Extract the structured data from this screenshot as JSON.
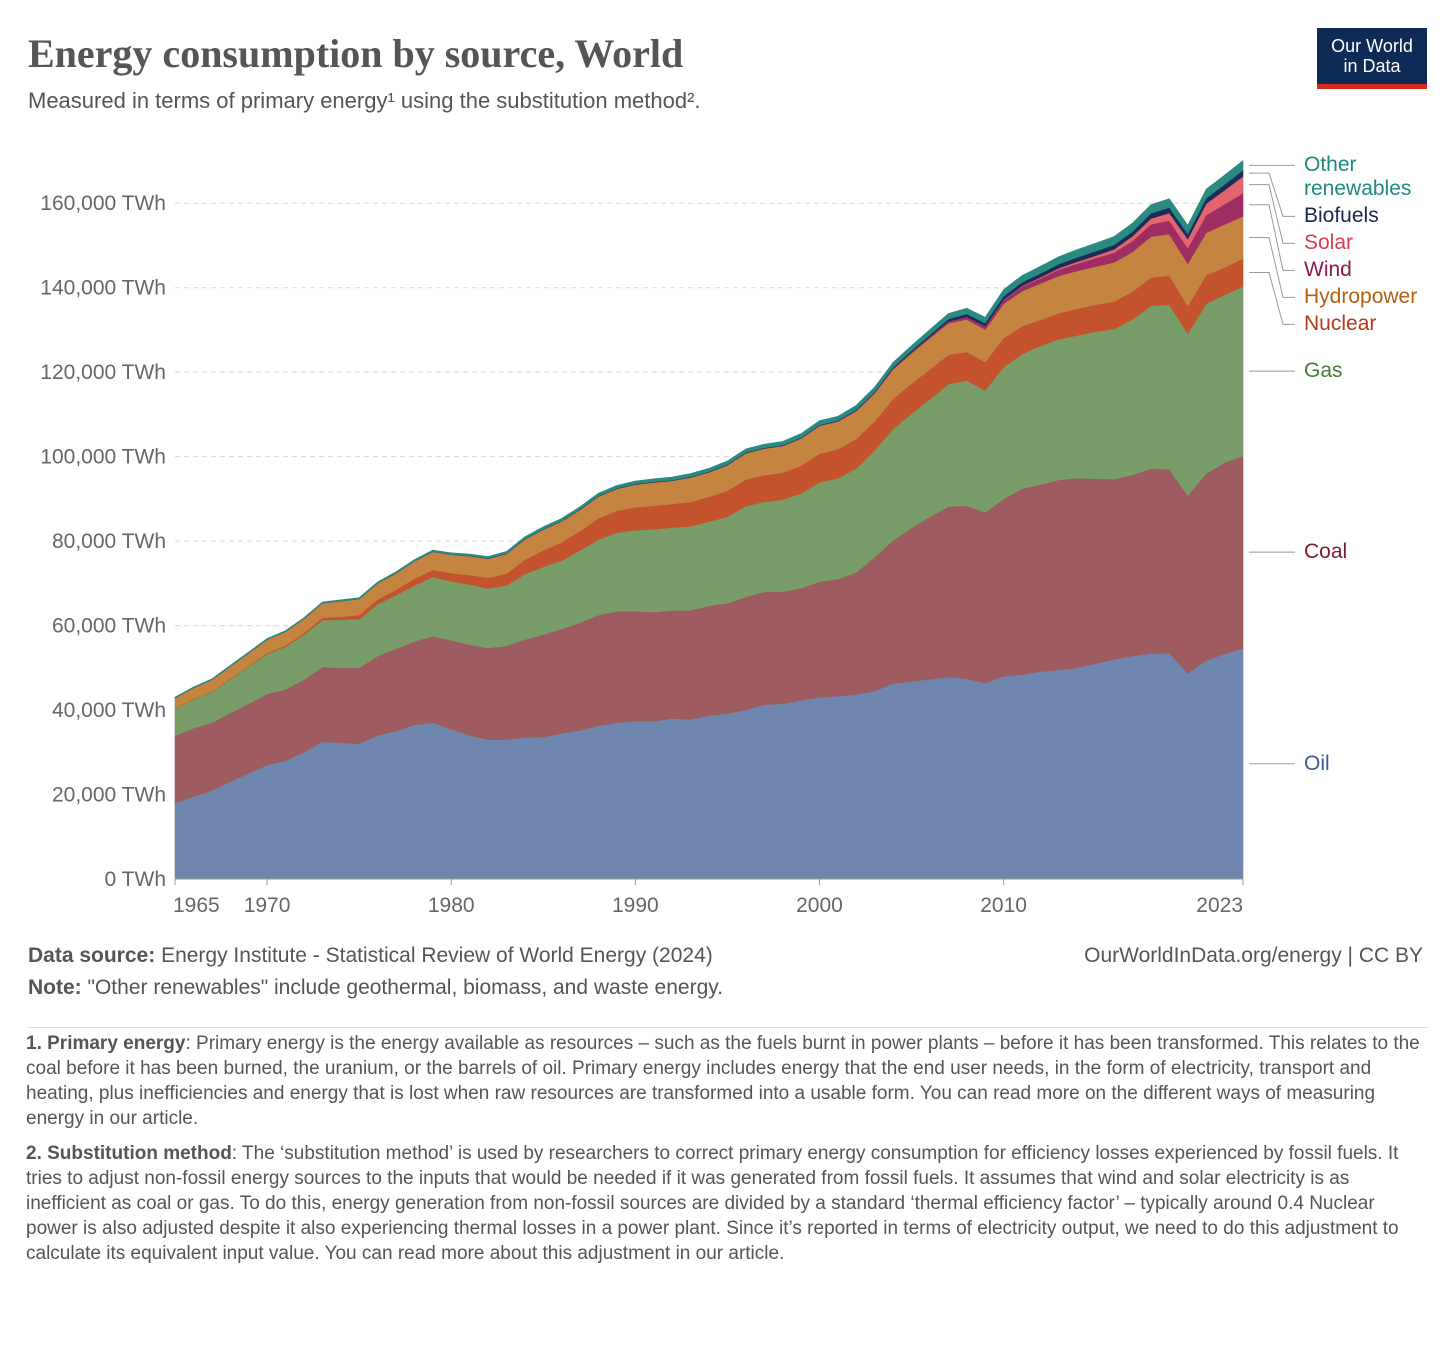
{
  "chart_data": {
    "type": "stacked_area",
    "title": "Energy consumption by source, World",
    "subtitle": "Measured in terms of primary energy¹ using the substitution method².",
    "logo": [
      "Our World",
      "in Data"
    ],
    "x": [
      1965,
      1966,
      1967,
      1968,
      1969,
      1970,
      1971,
      1972,
      1973,
      1974,
      1975,
      1976,
      1977,
      1978,
      1979,
      1980,
      1981,
      1982,
      1983,
      1984,
      1985,
      1986,
      1987,
      1988,
      1989,
      1990,
      1991,
      1992,
      1993,
      1994,
      1995,
      1996,
      1997,
      1998,
      1999,
      2000,
      2001,
      2002,
      2003,
      2004,
      2005,
      2006,
      2007,
      2008,
      2009,
      2010,
      2011,
      2012,
      2013,
      2014,
      2015,
      2016,
      2017,
      2018,
      2019,
      2020,
      2021,
      2022,
      2023
    ],
    "xlim": [
      1965,
      2023
    ],
    "xticks": [
      1965,
      1970,
      1980,
      1990,
      2000,
      2010,
      2023
    ],
    "ylim": [
      0,
      170000
    ],
    "yticks": [
      {
        "value": 0,
        "label": "0 TWh"
      },
      {
        "value": 20000,
        "label": "20,000 TWh"
      },
      {
        "value": 40000,
        "label": "40,000 TWh"
      },
      {
        "value": 60000,
        "label": "60,000 TWh"
      },
      {
        "value": 80000,
        "label": "80,000 TWh"
      },
      {
        "value": 100000,
        "label": "100,000 TWh"
      },
      {
        "value": 120000,
        "label": "120,000 TWh"
      },
      {
        "value": 140000,
        "label": "140,000 TWh"
      },
      {
        "value": 160000,
        "label": "160,000 TWh"
      }
    ],
    "grid": true,
    "series": [
      {
        "name": "Oil",
        "color": "#6f86ae",
        "label_color": "#3d5a96",
        "values": [
          18000,
          19500,
          21000,
          23000,
          25000,
          27000,
          28000,
          30000,
          32500,
          32300,
          32000,
          34000,
          35000,
          36500,
          37000,
          35500,
          34000,
          33000,
          33000,
          33500,
          33600,
          34500,
          35200,
          36300,
          37000,
          37400,
          37400,
          38000,
          37800,
          38700,
          39200,
          40000,
          41300,
          41500,
          42300,
          43000,
          43300,
          43700,
          44500,
          46300,
          46800,
          47300,
          47800,
          47400,
          46400,
          48000,
          48400,
          49100,
          49500,
          50000,
          51000,
          52000,
          52800,
          53400,
          53500,
          48700,
          51700,
          53300,
          54600
        ]
      },
      {
        "name": "Coal",
        "color": "#9e5b5f",
        "label_color": "#7a1f2a",
        "values": [
          16000,
          16200,
          16000,
          16300,
          16500,
          16800,
          16900,
          17200,
          17700,
          17700,
          18000,
          18800,
          19500,
          19800,
          20500,
          21000,
          21500,
          21700,
          22200,
          23200,
          24300,
          24700,
          25500,
          26200,
          26400,
          26000,
          25800,
          25600,
          25800,
          26000,
          26100,
          26800,
          26700,
          26500,
          26600,
          27400,
          27700,
          28900,
          31700,
          33900,
          36300,
          38500,
          40400,
          41000,
          40400,
          42000,
          44000,
          44300,
          45000,
          44900,
          43800,
          42700,
          42900,
          43800,
          43500,
          42100,
          44300,
          45300,
          45600
        ]
      },
      {
        "name": "Gas",
        "color": "#789d68",
        "label_color": "#4a7a3a",
        "values": [
          6300,
          6800,
          7300,
          8000,
          8800,
          9500,
          10100,
          10600,
          11100,
          11400,
          11500,
          12300,
          12700,
          13200,
          14000,
          14000,
          14200,
          14100,
          14300,
          15500,
          16000,
          16200,
          17100,
          17900,
          18600,
          19200,
          19600,
          19600,
          19900,
          19900,
          20500,
          21500,
          21300,
          21800,
          22400,
          23500,
          23900,
          24600,
          25300,
          26400,
          27100,
          27800,
          29000,
          29600,
          28900,
          31200,
          31900,
          32800,
          33300,
          33800,
          34800,
          35500,
          36800,
          38500,
          39000,
          38300,
          40200,
          39700,
          40100
        ]
      },
      {
        "name": "Nuclear",
        "color": "#c4522e",
        "label_color": "#b5391d",
        "values": [
          70,
          100,
          120,
          150,
          170,
          230,
          300,
          400,
          550,
          700,
          1000,
          1100,
          1300,
          1600,
          1700,
          1900,
          2300,
          2500,
          2800,
          3400,
          3900,
          4300,
          4600,
          5000,
          5200,
          5400,
          5600,
          5600,
          5800,
          5900,
          6100,
          6300,
          6300,
          6400,
          6600,
          6800,
          6900,
          7000,
          6900,
          7100,
          7100,
          7100,
          6900,
          6800,
          6700,
          6900,
          6600,
          6200,
          6200,
          6300,
          6400,
          6500,
          6600,
          6700,
          6900,
          6600,
          6800,
          6500,
          6600
        ]
      },
      {
        "name": "Hydropower",
        "color": "#c5843f",
        "label_color": "#b35f12",
        "values": [
          2500,
          2650,
          2750,
          2900,
          3050,
          3150,
          3250,
          3400,
          3450,
          3700,
          3800,
          3800,
          3900,
          4150,
          4300,
          4400,
          4450,
          4550,
          4700,
          4850,
          4950,
          5000,
          5050,
          5200,
          5200,
          5400,
          5500,
          5500,
          5800,
          5800,
          6100,
          6200,
          6300,
          6300,
          6400,
          6600,
          6500,
          6600,
          6600,
          7000,
          7200,
          7400,
          7500,
          7700,
          7700,
          8100,
          8300,
          8600,
          8800,
          9000,
          9000,
          9300,
          9400,
          9700,
          9800,
          10000,
          10000,
          10200,
          10000
        ]
      },
      {
        "name": "Wind",
        "color": "#a02c64",
        "label_color": "#8a1a4a",
        "values": [
          0,
          0,
          0,
          0,
          0,
          0,
          0,
          0,
          0,
          0,
          0,
          0,
          0,
          0,
          0,
          0,
          0,
          0,
          0,
          0,
          5,
          5,
          8,
          10,
          10,
          10,
          12,
          13,
          15,
          20,
          22,
          28,
          35,
          45,
          60,
          80,
          100,
          130,
          160,
          210,
          260,
          330,
          420,
          540,
          680,
          850,
          1050,
          1250,
          1500,
          1700,
          2000,
          2300,
          2600,
          2900,
          3200,
          3650,
          4200,
          4800,
          5500
        ]
      },
      {
        "name": "Solar",
        "color": "#e2646f",
        "label_color": "#d73c50",
        "values": [
          0,
          0,
          0,
          0,
          0,
          0,
          0,
          0,
          0,
          0,
          0,
          0,
          0,
          0,
          0,
          0,
          0,
          0,
          0,
          0,
          0,
          0,
          0,
          0,
          0,
          1,
          1,
          1,
          1,
          1,
          1,
          1,
          2,
          2,
          2,
          3,
          4,
          5,
          6,
          8,
          10,
          15,
          20,
          35,
          55,
          90,
          170,
          250,
          350,
          470,
          600,
          800,
          1100,
          1400,
          1800,
          2200,
          2700,
          3300,
          4000
        ]
      },
      {
        "name": "Biofuels",
        "color": "#1c2b58",
        "label_color": "#1a2550",
        "values": [
          0,
          0,
          0,
          0,
          0,
          0,
          0,
          0,
          0,
          0,
          10,
          10,
          10,
          10,
          10,
          40,
          50,
          60,
          70,
          80,
          90,
          100,
          110,
          110,
          110,
          120,
          120,
          120,
          120,
          130,
          140,
          140,
          150,
          150,
          150,
          150,
          160,
          190,
          230,
          270,
          320,
          420,
          560,
          720,
          780,
          870,
          880,
          890,
          960,
          1030,
          1050,
          1080,
          1110,
          1230,
          1270,
          1170,
          1270,
          1370,
          1450
        ]
      },
      {
        "name": "Other renewables",
        "color": "#2a8a82",
        "label_color": "#1f8a80",
        "values": [
          200,
          210,
          220,
          230,
          240,
          250,
          260,
          270,
          290,
          300,
          310,
          320,
          340,
          360,
          380,
          400,
          430,
          450,
          480,
          510,
          540,
          570,
          600,
          630,
          660,
          690,
          710,
          730,
          760,
          790,
          820,
          850,
          870,
          900,
          950,
          980,
          1000,
          1050,
          1100,
          1150,
          1200,
          1250,
          1300,
          1350,
          1400,
          1550,
          1600,
          1700,
          1750,
          1850,
          1900,
          1950,
          2000,
          2050,
          2100,
          2100,
          2150,
          2200,
          2250
        ]
      }
    ],
    "source_label": "Data source:",
    "source": "Energy Institute - Statistical Review of World Energy (2024)",
    "site": "OurWorldInData.org/energy | CC BY",
    "note_label": "Note:",
    "note": "\"Other renewables\" include geothermal, biomass, and waste energy.",
    "footnotes": [
      {
        "label": "1. Primary energy",
        "text": ": Primary energy is the energy available as resources – such as the fuels burnt in power plants – before it has been transformed. This relates to the coal before it has been burned, the uranium, or the barrels of oil. Primary energy includes energy that the end user needs, in the form of electricity, transport and heating, plus inefficiencies and energy that is lost when raw resources are transformed into a usable form. You can read more on the different ways of measuring energy in our article."
      },
      {
        "label": "2. Substitution method",
        "text": ": The ‘substitution method’ is used by researchers to correct primary energy consumption for efficiency losses experienced by fossil fuels. It tries to adjust non-fossil energy sources to the inputs that would be needed if it was generated from fossil fuels. It assumes that wind and solar electricity is as inefficient as coal or gas. To do this, energy generation from non-fossil sources are divided by a standard ‘thermal efficiency factor’ – typically around 0.4 Nuclear power is also adjusted despite it also experiencing thermal losses in a power plant. Since it’s reported in terms of electricity output, we need to do this adjustment to calculate its equivalent input value. You can read more about this adjustment in our article."
      }
    ]
  }
}
